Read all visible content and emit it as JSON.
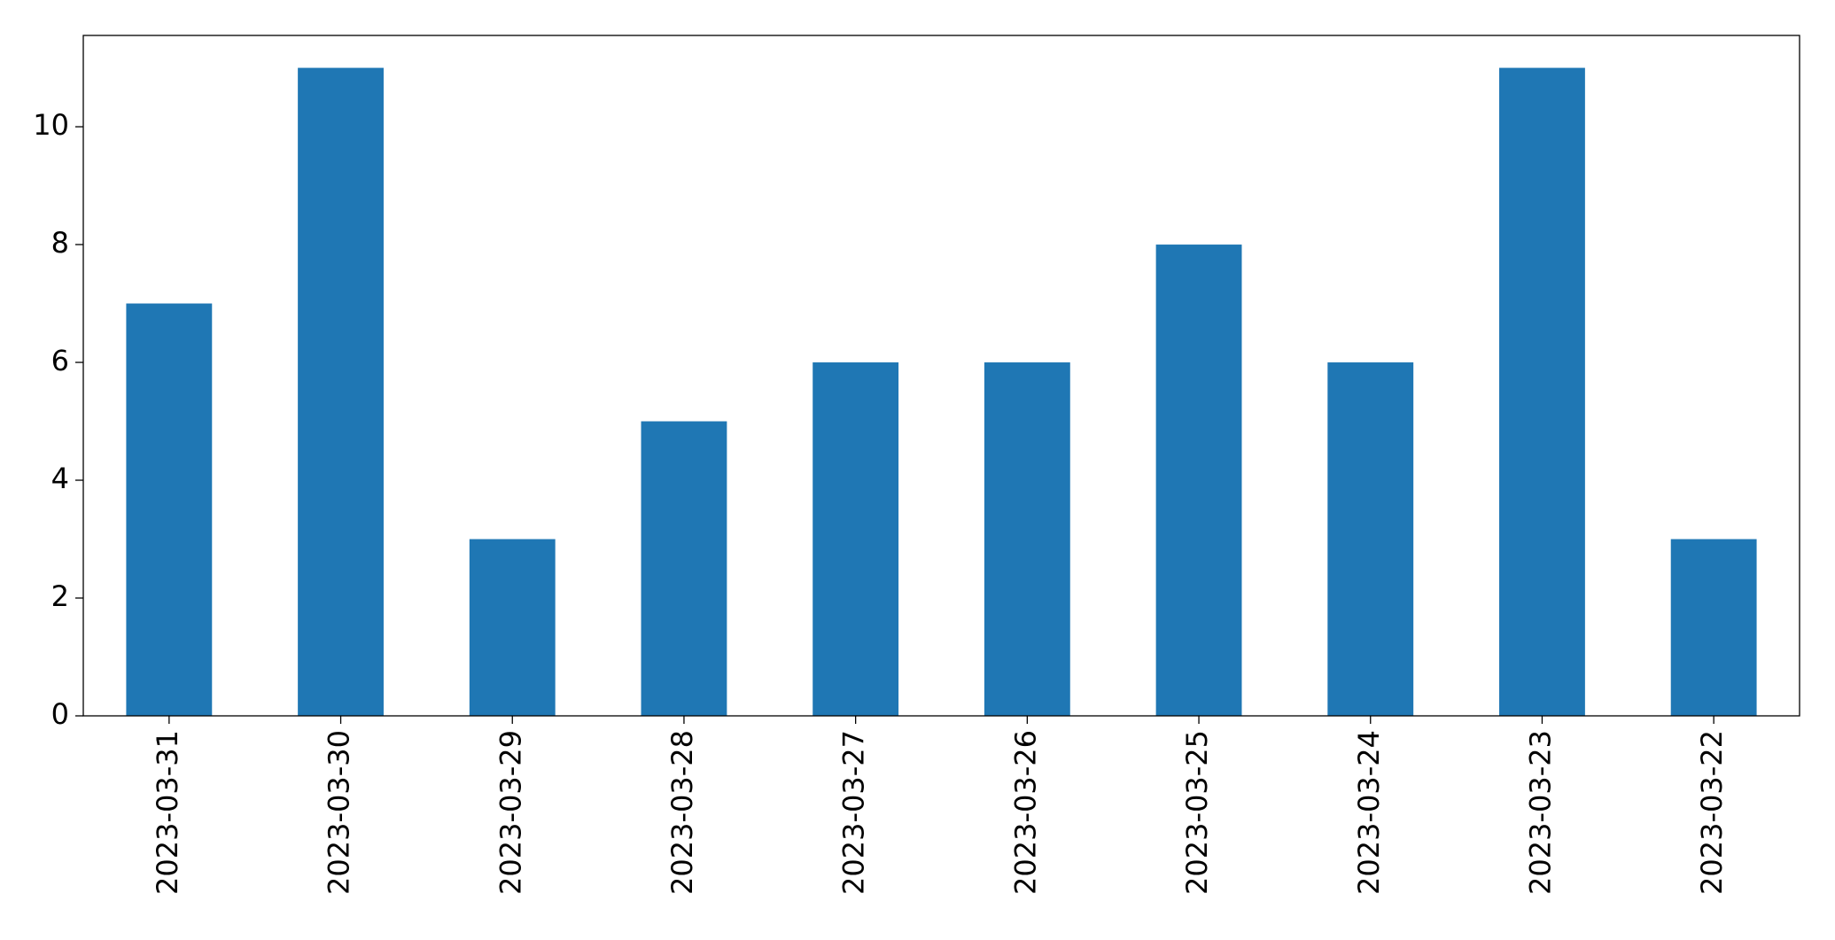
{
  "chart_data": {
    "type": "bar",
    "categories": [
      "2023-03-31",
      "2023-03-30",
      "2023-03-29",
      "2023-03-28",
      "2023-03-27",
      "2023-03-26",
      "2023-03-25",
      "2023-03-24",
      "2023-03-23",
      "2023-03-22"
    ],
    "values": [
      7,
      11,
      3,
      5,
      6,
      6,
      8,
      6,
      11,
      3
    ],
    "color": "#1f77b4",
    "ylim": [
      0,
      11.55
    ],
    "yticks": [
      0,
      2,
      4,
      6,
      8,
      10
    ],
    "grid": false
  }
}
